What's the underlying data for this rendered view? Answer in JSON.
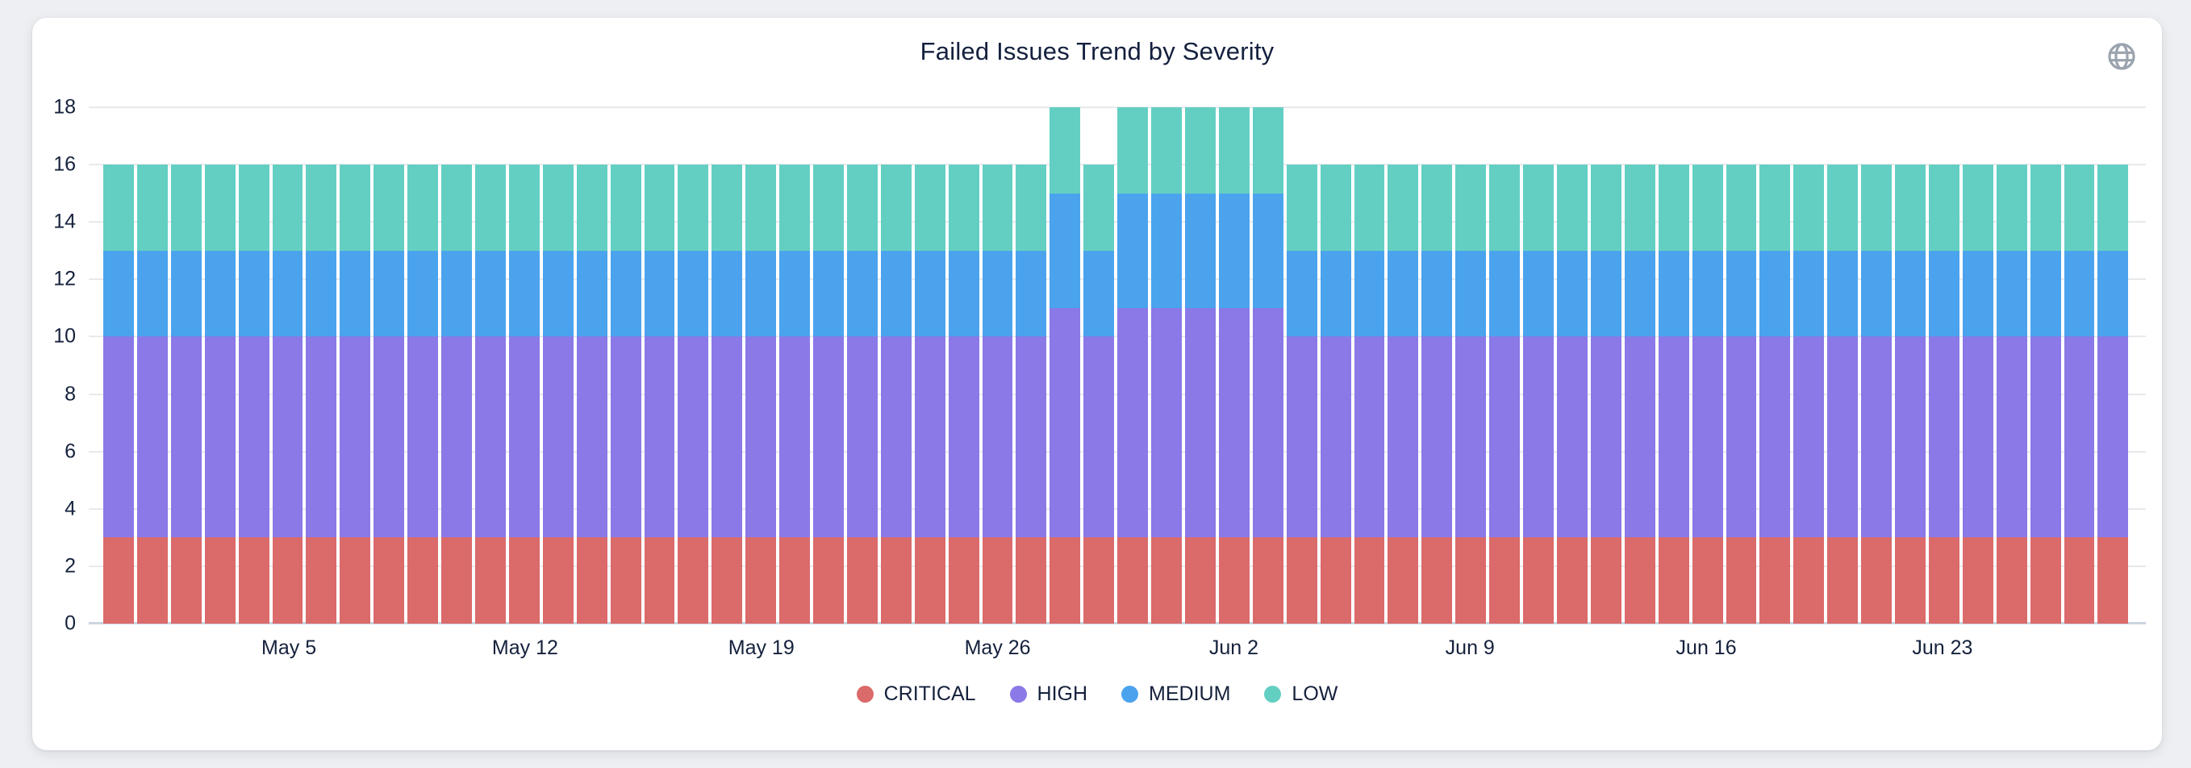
{
  "card": {
    "background": "#ffffff",
    "page_background": "#edeff2"
  },
  "header": {
    "icons": [
      {
        "name": "globe-icon",
        "color": "#9aa3ae"
      }
    ]
  },
  "chart_data": {
    "type": "bar",
    "stacked": true,
    "title": "Failed Issues Trend by Severity",
    "title_color": "#14203e",
    "grid": true,
    "legend_position": "bottom",
    "ylim": [
      0,
      18
    ],
    "yticks": [
      0,
      2,
      4,
      6,
      8,
      10,
      12,
      14,
      16,
      18
    ],
    "xtick_labels": [
      "May 5",
      "May 12",
      "May 19",
      "May 26",
      "Jun 2",
      "Jun 9",
      "Jun 16",
      "Jun 23"
    ],
    "xtick_indices": [
      5,
      12,
      19,
      26,
      33,
      40,
      47,
      54
    ],
    "categories": [
      "Apr 30",
      "May 1",
      "May 2",
      "May 3",
      "May 4",
      "May 5",
      "May 6",
      "May 7",
      "May 8",
      "May 9",
      "May 10",
      "May 11",
      "May 12",
      "May 13",
      "May 14",
      "May 15",
      "May 16",
      "May 17",
      "May 18",
      "May 19",
      "May 20",
      "May 21",
      "May 22",
      "May 23",
      "May 24",
      "May 25",
      "May 26",
      "May 27",
      "May 28",
      "May 29",
      "May 30",
      "May 31",
      "Jun 1",
      "Jun 2",
      "Jun 3",
      "Jun 4",
      "Jun 5",
      "Jun 6",
      "Jun 7",
      "Jun 8",
      "Jun 9",
      "Jun 10",
      "Jun 11",
      "Jun 12",
      "Jun 13",
      "Jun 14",
      "Jun 15",
      "Jun 16",
      "Jun 17",
      "Jun 18",
      "Jun 19",
      "Jun 20",
      "Jun 21",
      "Jun 22",
      "Jun 23",
      "Jun 24",
      "Jun 25",
      "Jun 26",
      "Jun 27",
      "Jun 28"
    ],
    "series": [
      {
        "name": "CRITICAL",
        "color": "#db6a6a",
        "values": [
          3,
          3,
          3,
          3,
          3,
          3,
          3,
          3,
          3,
          3,
          3,
          3,
          3,
          3,
          3,
          3,
          3,
          3,
          3,
          3,
          3,
          3,
          3,
          3,
          3,
          3,
          3,
          3,
          3,
          3,
          3,
          3,
          3,
          3,
          3,
          3,
          3,
          3,
          3,
          3,
          3,
          3,
          3,
          3,
          3,
          3,
          3,
          3,
          3,
          3,
          3,
          3,
          3,
          3,
          3,
          3,
          3,
          3,
          3,
          3
        ]
      },
      {
        "name": "HIGH",
        "color": "#8a79e6",
        "values": [
          7,
          7,
          7,
          7,
          7,
          7,
          7,
          7,
          7,
          7,
          7,
          7,
          7,
          7,
          7,
          7,
          7,
          7,
          7,
          7,
          7,
          7,
          7,
          7,
          7,
          7,
          7,
          7,
          8,
          7,
          8,
          8,
          8,
          8,
          8,
          7,
          7,
          7,
          7,
          7,
          7,
          7,
          7,
          7,
          7,
          7,
          7,
          7,
          7,
          7,
          7,
          7,
          7,
          7,
          7,
          7,
          7,
          7,
          7,
          7
        ]
      },
      {
        "name": "MEDIUM",
        "color": "#4ba3ee",
        "values": [
          3,
          3,
          3,
          3,
          3,
          3,
          3,
          3,
          3,
          3,
          3,
          3,
          3,
          3,
          3,
          3,
          3,
          3,
          3,
          3,
          3,
          3,
          3,
          3,
          3,
          3,
          3,
          3,
          4,
          3,
          4,
          4,
          4,
          4,
          4,
          3,
          3,
          3,
          3,
          3,
          3,
          3,
          3,
          3,
          3,
          3,
          3,
          3,
          3,
          3,
          3,
          3,
          3,
          3,
          3,
          3,
          3,
          3,
          3,
          3
        ]
      },
      {
        "name": "LOW",
        "color": "#63cfc3",
        "values": [
          3,
          3,
          3,
          3,
          3,
          3,
          3,
          3,
          3,
          3,
          3,
          3,
          3,
          3,
          3,
          3,
          3,
          3,
          3,
          3,
          3,
          3,
          3,
          3,
          3,
          3,
          3,
          3,
          3,
          3,
          3,
          3,
          3,
          3,
          3,
          3,
          3,
          3,
          3,
          3,
          3,
          3,
          3,
          3,
          3,
          3,
          3,
          3,
          3,
          3,
          3,
          3,
          3,
          3,
          3,
          3,
          3,
          3,
          3,
          3
        ]
      }
    ],
    "colors": {
      "gridline": "#e8e9ec",
      "axis_line": "#cbd4e0",
      "tick_text": "#15213c"
    }
  }
}
